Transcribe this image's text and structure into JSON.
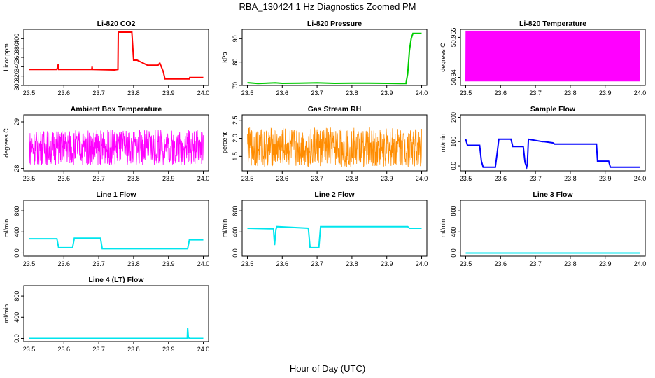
{
  "figure": {
    "title": "RBA_130424  1 Hz Diagnostics Zoomed PM",
    "xlabel": "Hour of Day (UTC)"
  },
  "chart_data": [
    {
      "type": "line",
      "title": "Li-820 CO2",
      "ylabel": "Licor ppm",
      "color": "#ff0000",
      "xlim": [
        23.485,
        24.015
      ],
      "xticks": [
        23.5,
        23.6,
        23.7,
        23.8,
        23.9,
        24.0
      ],
      "ylim": [
        300,
        420
      ],
      "yticks": [
        300,
        320,
        340,
        360,
        380,
        400
      ],
      "series": [
        {
          "x": [
            23.5,
            23.58,
            23.584,
            23.585,
            23.68,
            23.681,
            23.682,
            23.745,
            23.755,
            23.756,
            23.795,
            23.8,
            23.81,
            23.84,
            23.85,
            23.86,
            23.87,
            23.875,
            23.885,
            23.89,
            23.9,
            23.96,
            23.961,
            24.0
          ],
          "y": [
            334,
            334,
            345,
            334,
            334,
            340,
            334,
            333,
            334,
            414,
            414,
            354,
            354,
            343,
            343,
            343,
            343,
            348,
            330,
            314,
            314,
            314,
            317,
            317
          ]
        }
      ]
    },
    {
      "type": "line",
      "title": "Li-820 Pressure",
      "ylabel": "kPa",
      "color": "#00cc00",
      "xlim": [
        23.485,
        24.015
      ],
      "xticks": [
        23.5,
        23.6,
        23.7,
        23.8,
        23.9,
        24.0
      ],
      "ylim": [
        70,
        94
      ],
      "yticks": [
        70,
        80,
        90
      ],
      "series": [
        {
          "x": [
            23.5,
            23.53,
            23.58,
            23.6,
            23.65,
            23.7,
            23.75,
            23.8,
            23.85,
            23.9,
            23.94,
            23.955,
            23.96,
            23.965,
            23.97,
            23.975,
            24.0
          ],
          "y": [
            71.2,
            70.8,
            71.1,
            70.9,
            71.0,
            71.1,
            70.9,
            71.0,
            71.0,
            70.9,
            70.8,
            70.8,
            75,
            85,
            90,
            92.3,
            92.3
          ]
        }
      ]
    },
    {
      "type": "line",
      "title": "Li-820 Temperature",
      "ylabel": "degrees C",
      "color": "#ff00ff",
      "xlim": [
        23.485,
        24.015
      ],
      "xticks": [
        23.5,
        23.6,
        23.7,
        23.8,
        23.9,
        24.0
      ],
      "ylim": [
        50.937,
        50.958
      ],
      "yticks": [
        50.94,
        50.955
      ],
      "noise": {
        "low": 50.9385,
        "high": 50.9575
      }
    },
    {
      "type": "line",
      "title": "Ambient Box Temperature",
      "ylabel": "degrees C",
      "color": "#ff00ff",
      "xlim": [
        23.485,
        24.015
      ],
      "xticks": [
        23.5,
        23.6,
        23.7,
        23.8,
        23.9,
        24.0
      ],
      "ylim": [
        27.95,
        29.15
      ],
      "yticks": [
        28.0,
        29.0
      ],
      "noise": {
        "center": 28.45,
        "amp": 0.38
      }
    },
    {
      "type": "line",
      "title": "Gas Stream RH",
      "ylabel": "percent",
      "color": "#ff8c00",
      "xlim": [
        23.485,
        24.015
      ],
      "xticks": [
        23.5,
        23.6,
        23.7,
        23.8,
        23.9,
        24.0
      ],
      "ylim": [
        1.1,
        2.65
      ],
      "yticks": [
        1.5,
        2.0,
        2.5
      ],
      "noise": {
        "center": 1.75,
        "amp": 0.55
      }
    },
    {
      "type": "line",
      "title": "Sample Flow",
      "ylabel": "ml/min",
      "color": "#0000ff",
      "xlim": [
        23.485,
        24.015
      ],
      "xticks": [
        23.5,
        23.6,
        23.7,
        23.8,
        23.9,
        24.0
      ],
      "ylim": [
        -20,
        210
      ],
      "yticks": [
        0,
        100,
        200
      ],
      "series": [
        {
          "x": [
            23.5,
            23.505,
            23.54,
            23.545,
            23.55,
            23.585,
            23.59,
            23.595,
            23.63,
            23.635,
            23.665,
            23.67,
            23.675,
            23.677,
            23.68,
            23.72,
            23.725,
            23.75,
            23.755,
            23.875,
            23.878,
            23.91,
            23.915,
            24.0
          ],
          "y": [
            110,
            85,
            85,
            20,
            -5,
            -5,
            50,
            110,
            110,
            80,
            80,
            15,
            -5,
            10,
            110,
            100,
            100,
            95,
            90,
            90,
            20,
            20,
            -5,
            -5
          ]
        }
      ]
    },
    {
      "type": "line",
      "title": "Line 1 Flow",
      "ylabel": "ml/min",
      "color": "#00e5ee",
      "xlim": [
        23.485,
        24.015
      ],
      "xticks": [
        23.5,
        23.6,
        23.7,
        23.8,
        23.9,
        24.0
      ],
      "ylim": [
        -60,
        1000
      ],
      "yticks": [
        0,
        400,
        800
      ],
      "series": [
        {
          "x": [
            23.5,
            23.58,
            23.585,
            23.625,
            23.63,
            23.705,
            23.71,
            23.75,
            23.755,
            23.955,
            23.96,
            24.0
          ],
          "y": [
            270,
            270,
            100,
            100,
            280,
            280,
            80,
            80,
            80,
            80,
            250,
            250
          ]
        }
      ]
    },
    {
      "type": "line",
      "title": "Line 2 Flow",
      "ylabel": "ml/min",
      "color": "#00e5ee",
      "xlim": [
        23.485,
        24.015
      ],
      "xticks": [
        23.5,
        23.6,
        23.7,
        23.8,
        23.9,
        24.0
      ],
      "ylim": [
        -60,
        1000
      ],
      "yticks": [
        0,
        400,
        800
      ],
      "series": [
        {
          "x": [
            23.5,
            23.575,
            23.578,
            23.582,
            23.585,
            23.675,
            23.68,
            23.705,
            23.71,
            23.96,
            23.965,
            24.0
          ],
          "y": [
            470,
            460,
            150,
            450,
            500,
            470,
            100,
            100,
            500,
            500,
            470,
            470
          ]
        }
      ]
    },
    {
      "type": "line",
      "title": "Line 3 Flow",
      "ylabel": "ml/min",
      "color": "#00e5ee",
      "xlim": [
        23.485,
        24.015
      ],
      "xticks": [
        23.5,
        23.6,
        23.7,
        23.8,
        23.9,
        24.0
      ],
      "ylim": [
        -60,
        1000
      ],
      "yticks": [
        0,
        400,
        800
      ],
      "series": [
        {
          "x": [
            23.5,
            24.0
          ],
          "y": [
            0,
            0
          ]
        }
      ]
    },
    {
      "type": "line",
      "title": "Line 4 (LT) Flow",
      "ylabel": "ml/min",
      "color": "#00e5ee",
      "xlim": [
        23.485,
        24.015
      ],
      "xticks": [
        23.5,
        23.6,
        23.7,
        23.8,
        23.9,
        24.0
      ],
      "ylim": [
        -60,
        1000
      ],
      "yticks": [
        0,
        400,
        800
      ],
      "series": [
        {
          "x": [
            23.5,
            23.954,
            23.955,
            23.957,
            23.96,
            24.0
          ],
          "y": [
            0,
            0,
            200,
            20,
            0,
            0
          ]
        }
      ]
    }
  ]
}
